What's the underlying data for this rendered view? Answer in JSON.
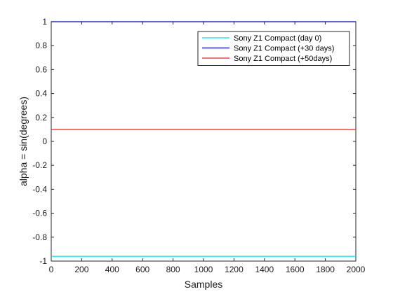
{
  "chart_data": {
    "type": "line",
    "title": "",
    "xlabel": "Samples",
    "ylabel": "alpha = sin(degrees)",
    "xlim": [
      0,
      2000
    ],
    "ylim": [
      -1,
      1
    ],
    "xticks": [
      0,
      200,
      400,
      600,
      800,
      1000,
      1200,
      1400,
      1600,
      1800,
      2000
    ],
    "yticks": [
      -1,
      -0.8,
      -0.6,
      -0.4,
      -0.2,
      0,
      0.2,
      0.4,
      0.6,
      0.8,
      1
    ],
    "grid": false,
    "legend_position": "top-right",
    "series": [
      {
        "name": "Sony Z1 Compact (day 0)",
        "color": "#00e5ee",
        "x": [
          0,
          2000
        ],
        "y": [
          -0.96,
          -0.96
        ]
      },
      {
        "name": "Sony Z1 Compact (+30 days)",
        "color": "#0000cc",
        "x": [
          0,
          2000
        ],
        "y": [
          1.0,
          1.0
        ]
      },
      {
        "name": "Sony Z1 Compact (+50days)",
        "color": "#ee2222",
        "x": [
          0,
          2000
        ],
        "y": [
          0.1,
          0.1
        ]
      }
    ]
  }
}
